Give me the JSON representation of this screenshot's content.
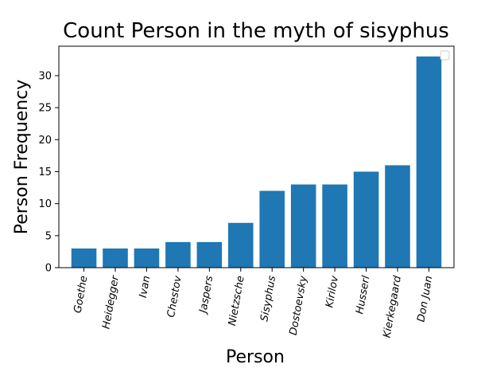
{
  "chart_data": {
    "type": "bar",
    "title": "Count Person in the myth of sisyphus",
    "xlabel": "Person",
    "ylabel": "Person Frequency",
    "categories": [
      "Goethe",
      "Heidegger",
      "Ivan",
      "Chestov",
      "Jaspers",
      "Nietzsche",
      "Sisyphus",
      "Dostoevsky",
      "Kirilov",
      "Husserl",
      "Kierkegaard",
      "Don Juan"
    ],
    "values": [
      3,
      3,
      3,
      4,
      4,
      7,
      12,
      13,
      13,
      15,
      16,
      33
    ],
    "ylim": [
      0,
      34.6
    ],
    "yticks": [
      0,
      5,
      10,
      15,
      20,
      25,
      30
    ],
    "bar_color": "#1f77b4",
    "legend": "top-right",
    "grid": false
  }
}
